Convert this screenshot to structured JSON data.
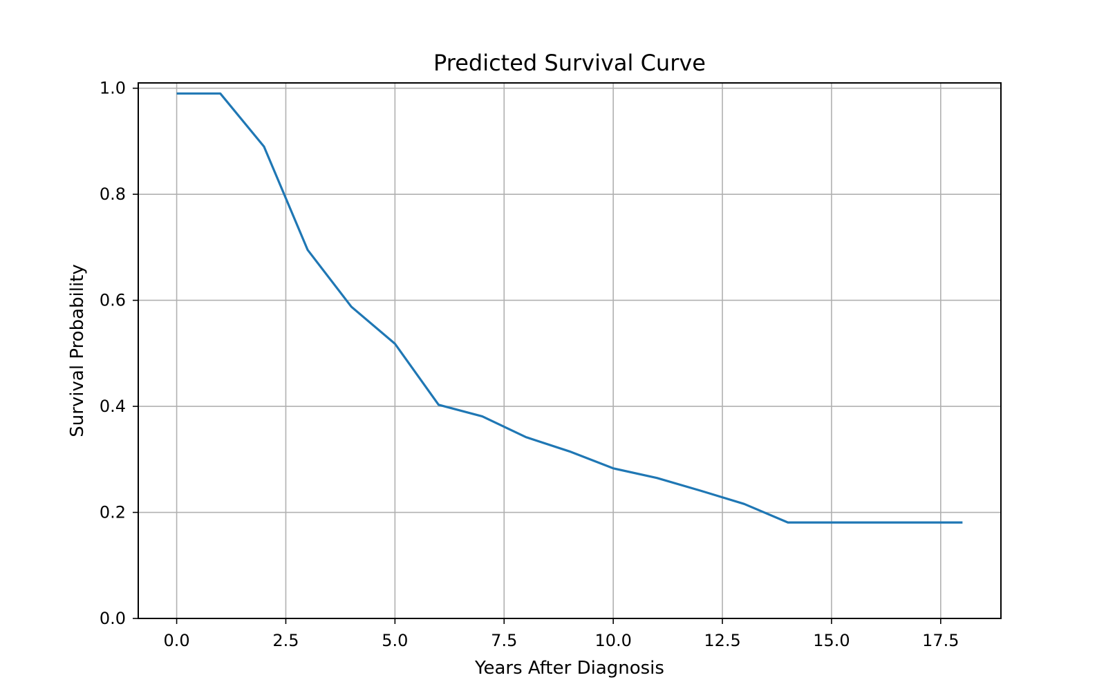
{
  "chart_data": {
    "type": "line",
    "title": "Predicted Survival Curve",
    "xlabel": "Years After Diagnosis",
    "ylabel": "Survival Probability",
    "xlim": [
      -0.88,
      18.88
    ],
    "ylim": [
      0.0,
      1.01
    ],
    "xticks": [
      "0.0",
      "2.5",
      "5.0",
      "7.5",
      "10.0",
      "12.5",
      "15.0",
      "17.5"
    ],
    "yticks": [
      "0.0",
      "0.2",
      "0.4",
      "0.6",
      "0.8",
      "1.0"
    ],
    "grid": true,
    "line_color": "#1f77b4",
    "grid_color": "#b0b0b0",
    "series": [
      {
        "x": [
          0,
          1,
          2,
          3,
          4,
          5,
          6,
          7,
          8,
          9,
          10,
          11,
          12,
          13,
          14,
          15,
          16,
          17,
          18
        ],
        "y": [
          0.99,
          0.99,
          0.89,
          0.695,
          0.588,
          0.518,
          0.403,
          0.381,
          0.342,
          0.315,
          0.283,
          0.265,
          0.241,
          0.216,
          0.181,
          0.181,
          0.181,
          0.181,
          0.181
        ]
      }
    ]
  }
}
